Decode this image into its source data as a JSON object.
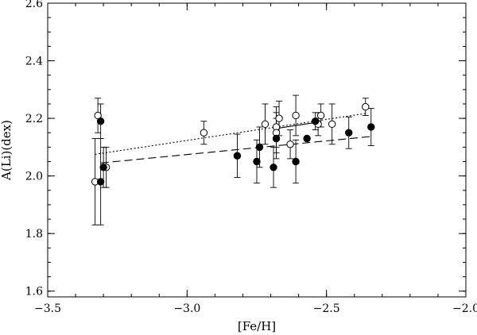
{
  "chart_data": {
    "type": "scatter",
    "xlabel": "[Fe/H]",
    "ylabel": "A(Li)(dex)",
    "xlim": [
      -3.5,
      -2.0
    ],
    "ylim": [
      1.58,
      2.6
    ],
    "x_ticks": [
      -3.5,
      -3.0,
      -2.5,
      -2.0
    ],
    "x_tick_labels": [
      "−3.5",
      "−3.0",
      "−2.5",
      "−2.0"
    ],
    "x_minor_step": 0.1,
    "y_ticks": [
      1.6,
      1.8,
      2.0,
      2.2,
      2.4,
      2.6
    ],
    "y_tick_labels": [
      "1.6",
      "1.8",
      "2.0",
      "2.2",
      "2.4",
      "2.6"
    ],
    "y_minor_step": 0.05,
    "grid": false,
    "series": [
      {
        "marker": "open-circle",
        "points": [
          {
            "x": -3.33,
            "y": 1.98,
            "err": 0.15
          },
          {
            "x": -3.32,
            "y": 2.21,
            "err": 0.06
          },
          {
            "x": -3.29,
            "y": 2.03,
            "err": 0.07
          },
          {
            "x": -2.94,
            "y": 2.15,
            "err": 0.04
          },
          {
            "x": -2.72,
            "y": 2.18,
            "err": 0.07
          },
          {
            "x": -2.68,
            "y": 2.17,
            "err": 0.07
          },
          {
            "x": -2.68,
            "y": 2.15,
            "err": 0.07
          },
          {
            "x": -2.67,
            "y": 2.2,
            "err": 0.06
          },
          {
            "x": -2.63,
            "y": 2.11,
            "err": 0.05
          },
          {
            "x": -2.61,
            "y": 2.21,
            "err": 0.07
          },
          {
            "x": -2.53,
            "y": 2.18,
            "err": 0.04
          },
          {
            "x": -2.52,
            "y": 2.21,
            "err": 0.04
          },
          {
            "x": -2.48,
            "y": 2.18,
            "err": 0.07
          },
          {
            "x": -2.36,
            "y": 2.24,
            "err": 0.03
          }
        ]
      },
      {
        "marker": "filled-circle",
        "points": [
          {
            "x": -3.31,
            "y": 1.98,
            "err": 0.15
          },
          {
            "x": -3.31,
            "y": 2.19,
            "err": 0.06
          },
          {
            "x": -3.3,
            "y": 2.03,
            "err": 0.07
          },
          {
            "x": -2.82,
            "y": 2.07,
            "err": 0.075
          },
          {
            "x": -2.75,
            "y": 2.05,
            "err": 0.075
          },
          {
            "x": -2.74,
            "y": 2.1,
            "err": 0.07
          },
          {
            "x": -2.69,
            "y": 2.03,
            "err": 0.07
          },
          {
            "x": -2.68,
            "y": 2.13,
            "err": 0.07
          },
          {
            "x": -2.61,
            "y": 2.05,
            "err": 0.075
          },
          {
            "x": -2.57,
            "y": 2.13,
            "err": 0.0
          },
          {
            "x": -2.54,
            "y": 2.19,
            "err": 0.03
          },
          {
            "x": -2.42,
            "y": 2.15,
            "err": 0.055
          },
          {
            "x": -2.34,
            "y": 2.17,
            "err": 0.065
          }
        ]
      }
    ],
    "fit_lines": [
      {
        "style": "dotted",
        "x": [
          -3.33,
          -2.36
        ],
        "y": [
          2.075,
          2.217
        ]
      },
      {
        "style": "solid",
        "x": [
          -2.68,
          -2.53
        ],
        "y": [
          2.165,
          2.187
        ]
      },
      {
        "style": "dashed",
        "x": [
          -3.31,
          -2.34
        ],
        "y": [
          2.045,
          2.137
        ]
      }
    ]
  }
}
